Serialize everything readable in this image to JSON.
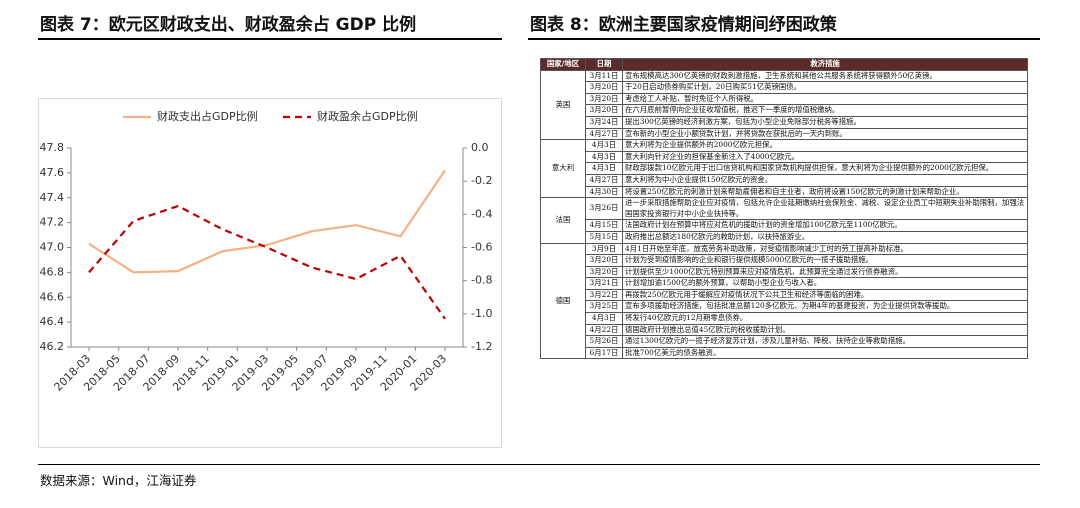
{
  "headings": {
    "left": "图表 7：欧元区财政支出、财政盈余占 GDP 比例",
    "right": "图表 8：欧洲主要国家疫情期间纾困政策"
  },
  "source": "数据来源：Wind，江海证券",
  "chart_data": {
    "type": "line",
    "x": [
      "2018-03",
      "2018-06",
      "2018-09",
      "2018-12",
      "2019-03",
      "2019-06",
      "2019-09",
      "2019-12",
      "2020-03"
    ],
    "xlim": [
      "2018-03",
      "2020-03"
    ],
    "xticks": [
      "2018-03",
      "2018-05",
      "2018-07",
      "2018-09",
      "2018-11",
      "2019-01",
      "2019-03",
      "2019-05",
      "2019-07",
      "2019-09",
      "2019-11",
      "2020-01",
      "2020-03"
    ],
    "ylim": [
      46.2,
      47.8
    ],
    "yticks": [
      46.2,
      46.4,
      46.6,
      46.8,
      {
        "value": 47,
        "label": "47.0"
      },
      47.2,
      47.4,
      47.6,
      47.8
    ],
    "y2lim": [
      -1.2,
      0
    ],
    "y2ticks": [
      -1.2,
      {
        "value": -1,
        "label": "-1.0"
      },
      -0.8,
      -0.6,
      -0.4,
      -0.2,
      {
        "value": 0,
        "label": "0.0"
      }
    ],
    "grid": false,
    "legend": "top",
    "series": [
      {
        "name": "财政支出占GDP比例",
        "color": "#f4b183",
        "dash": false,
        "values": [
          47.03,
          46.8,
          46.81,
          46.97,
          47.02,
          47.13,
          47.18,
          47.09,
          47.62
        ]
      },
      {
        "name": "财政盈余占GDP比例",
        "color": "#c00000",
        "dash": true,
        "axis": "y2",
        "values": [
          -0.75,
          -0.44,
          -0.35,
          -0.49,
          -0.6,
          -0.72,
          -0.79,
          -0.65,
          -1.03
        ]
      }
    ]
  },
  "table": {
    "header": [
      "国家/地区",
      "日期",
      "救济措施"
    ],
    "groups": [
      {
        "country": "英国",
        "rows": [
          [
            "3月11日",
            "宣布规模高达300亿英镑的财政刺激措施，卫生系统和其他公共服务系统将获得额外50亿英镑。"
          ],
          [
            "3月20日",
            "于20日启动债券购买计划，20日购买51亿英镑国债。"
          ],
          [
            "3月20日",
            "考虑给工人补贴，暂时免征个人所得税。"
          ],
          [
            "3月20日",
            "在六月底前暂停向企业征收增值税，推迟下一季度的增值税缴纳。"
          ],
          [
            "3月24日",
            "提出300亿英镑的经济刺激方案，包括为小型企业免除部分税务等措施。"
          ],
          [
            "4月27日",
            "宣布新的小型企业小额贷款计划，并将贷款在获批后的一天内到账。"
          ]
        ]
      },
      {
        "country": "意大利",
        "rows": [
          [
            "4月3日",
            "意大利将为企业提供额外的2000亿欧元担保。"
          ],
          [
            "4月3日",
            "意大利向针对企业的担保基金新注入了4000亿欧元。"
          ],
          [
            "4月3日",
            "财政部拨款10亿欧元用于出口信贷机构和国家贷款机构提供担保，意大利将为企业提供额外的2000亿欧元担保。"
          ],
          [
            "4月27日",
            "意大利将为中小企业提供150亿欧元的资金。"
          ],
          [
            "4月30日",
            "将设置250亿欧元的刺激计划来帮助雇佣者和自主业者，政府将设置150亿欧元的刺激计划来帮助企业。"
          ]
        ]
      },
      {
        "country": "法国",
        "rows": [
          [
            "3月26日",
            "进一步采取措施帮助企业应对疫情，包括允许企业延期缴纳社会保险金、减税、设定企业员工中短期失业补助限制，加强法国国家投资银行对中小企业扶持等。"
          ],
          [
            "4月15日",
            "法国政府计划在预算中将应对危机的援助计划的资金增加100亿欧元至1100亿欧元。"
          ],
          [
            "5月15日",
            "政府推出总额达180亿欧元的救助计划，以扶持旅游业。"
          ]
        ]
      },
      {
        "country": "德国",
        "rows": [
          [
            "3月9日",
            "4月1日开始至年底，放宽劳务补助政策，对受疫情影响减少工时的劳工提高补助标准。"
          ],
          [
            "3月20日",
            "计划为受到疫情影响的企业和银行提供规模5000亿欧元的一揽子援助措施。"
          ],
          [
            "3月20日",
            "计划提供至少1000亿欧元特别预算来应对疫情危机，此预算完全通过发行债券融资。"
          ],
          [
            "3月21日",
            "计划增加逾1500亿的额外预算，以帮助小型企业与收入者。"
          ],
          [
            "3月22日",
            "再拨款250亿欧元用于缓解应对疫情状况下公共卫生和经济等面临的困难。"
          ],
          [
            "3月25日",
            "宣布多项援助经济措施，包括批准总额120多亿欧元、为期4年的基建投资，为企业提供贷款等援助。"
          ],
          [
            "4月3日",
            "将发行40亿欧元的12月期零息债券。"
          ],
          [
            "4月22日",
            "德国政府计划推出总值45亿欧元的税收援助计划。"
          ],
          [
            "5月26日",
            "通过1300亿欧元的一揽子经济复苏计划，涉及儿童补贴、降税、扶持企业等救助措施。"
          ],
          [
            "6月17日",
            "批准700亿美元的债务融资。"
          ]
        ]
      }
    ]
  }
}
